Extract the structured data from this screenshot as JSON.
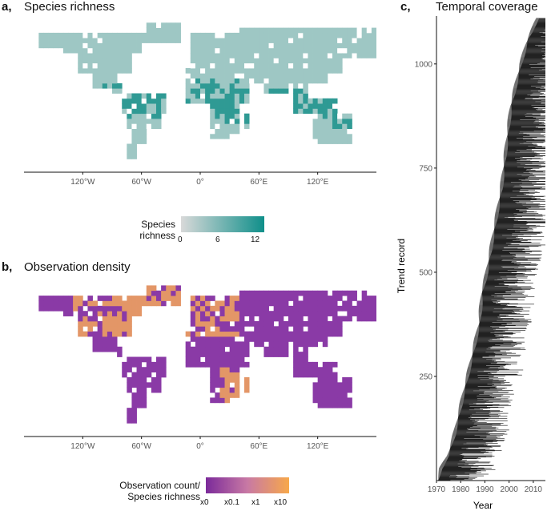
{
  "panels": {
    "a": {
      "label": "a,",
      "title": "Species richness"
    },
    "b": {
      "label": "b,",
      "title": "Observation density"
    },
    "c": {
      "label": "c,",
      "title": "Temporal coverage"
    }
  },
  "map_axis_ticks": [
    "120°W",
    "60°W",
    "0°",
    "60°E",
    "120°E"
  ],
  "legend_a": {
    "title_line1": "Species",
    "title_line2": "richness",
    "ticks": [
      "0",
      "6",
      "12"
    ],
    "color_low": "#d9d9d9",
    "color_high": "#0f8f8a"
  },
  "legend_b": {
    "title_line1": "Observation count/",
    "title_line2": "Species richness",
    "ticks": [
      "x0",
      "x0.1",
      "x1",
      "x10"
    ],
    "color_low": "#7b2a9a",
    "color_mid": "#c879a4",
    "color_high": "#f7a84a"
  },
  "colors": {
    "land": "#ffffff",
    "map_border": "#888888",
    "richness_cell": "#9ec7c4",
    "richness_high": "#2f9a94",
    "density_low": "#8a3aa6",
    "density_high": "#e39667",
    "bar": "#222222"
  },
  "chart_data": {
    "type": "bar",
    "orientation": "horizontal",
    "title": "Temporal coverage",
    "xlabel": "Year",
    "ylabel": "Trend record",
    "xlim": [
      1970,
      2015
    ],
    "ylim": [
      0,
      1115
    ],
    "x_ticks": [
      1970,
      1980,
      1990,
      2000,
      2010
    ],
    "y_ticks": [
      250,
      500,
      750,
      1000
    ],
    "records": 1110,
    "start_year_profile": [
      {
        "record": 1,
        "start": 1970
      },
      {
        "record": 30,
        "start": 1971
      },
      {
        "record": 60,
        "start": 1974
      },
      {
        "record": 120,
        "start": 1977
      },
      {
        "record": 200,
        "start": 1980
      },
      {
        "record": 250,
        "start": 1982
      },
      {
        "record": 300,
        "start": 1984
      },
      {
        "record": 380,
        "start": 1987
      },
      {
        "record": 450,
        "start": 1988
      },
      {
        "record": 500,
        "start": 1990
      },
      {
        "record": 600,
        "start": 1993
      },
      {
        "record": 700,
        "start": 1996
      },
      {
        "record": 800,
        "start": 1998
      },
      {
        "record": 900,
        "start": 2000
      },
      {
        "record": 1000,
        "start": 2004
      },
      {
        "record": 1060,
        "start": 2007
      },
      {
        "record": 1110,
        "start": 2011
      }
    ],
    "end_year_range": [
      1990,
      2015
    ]
  }
}
